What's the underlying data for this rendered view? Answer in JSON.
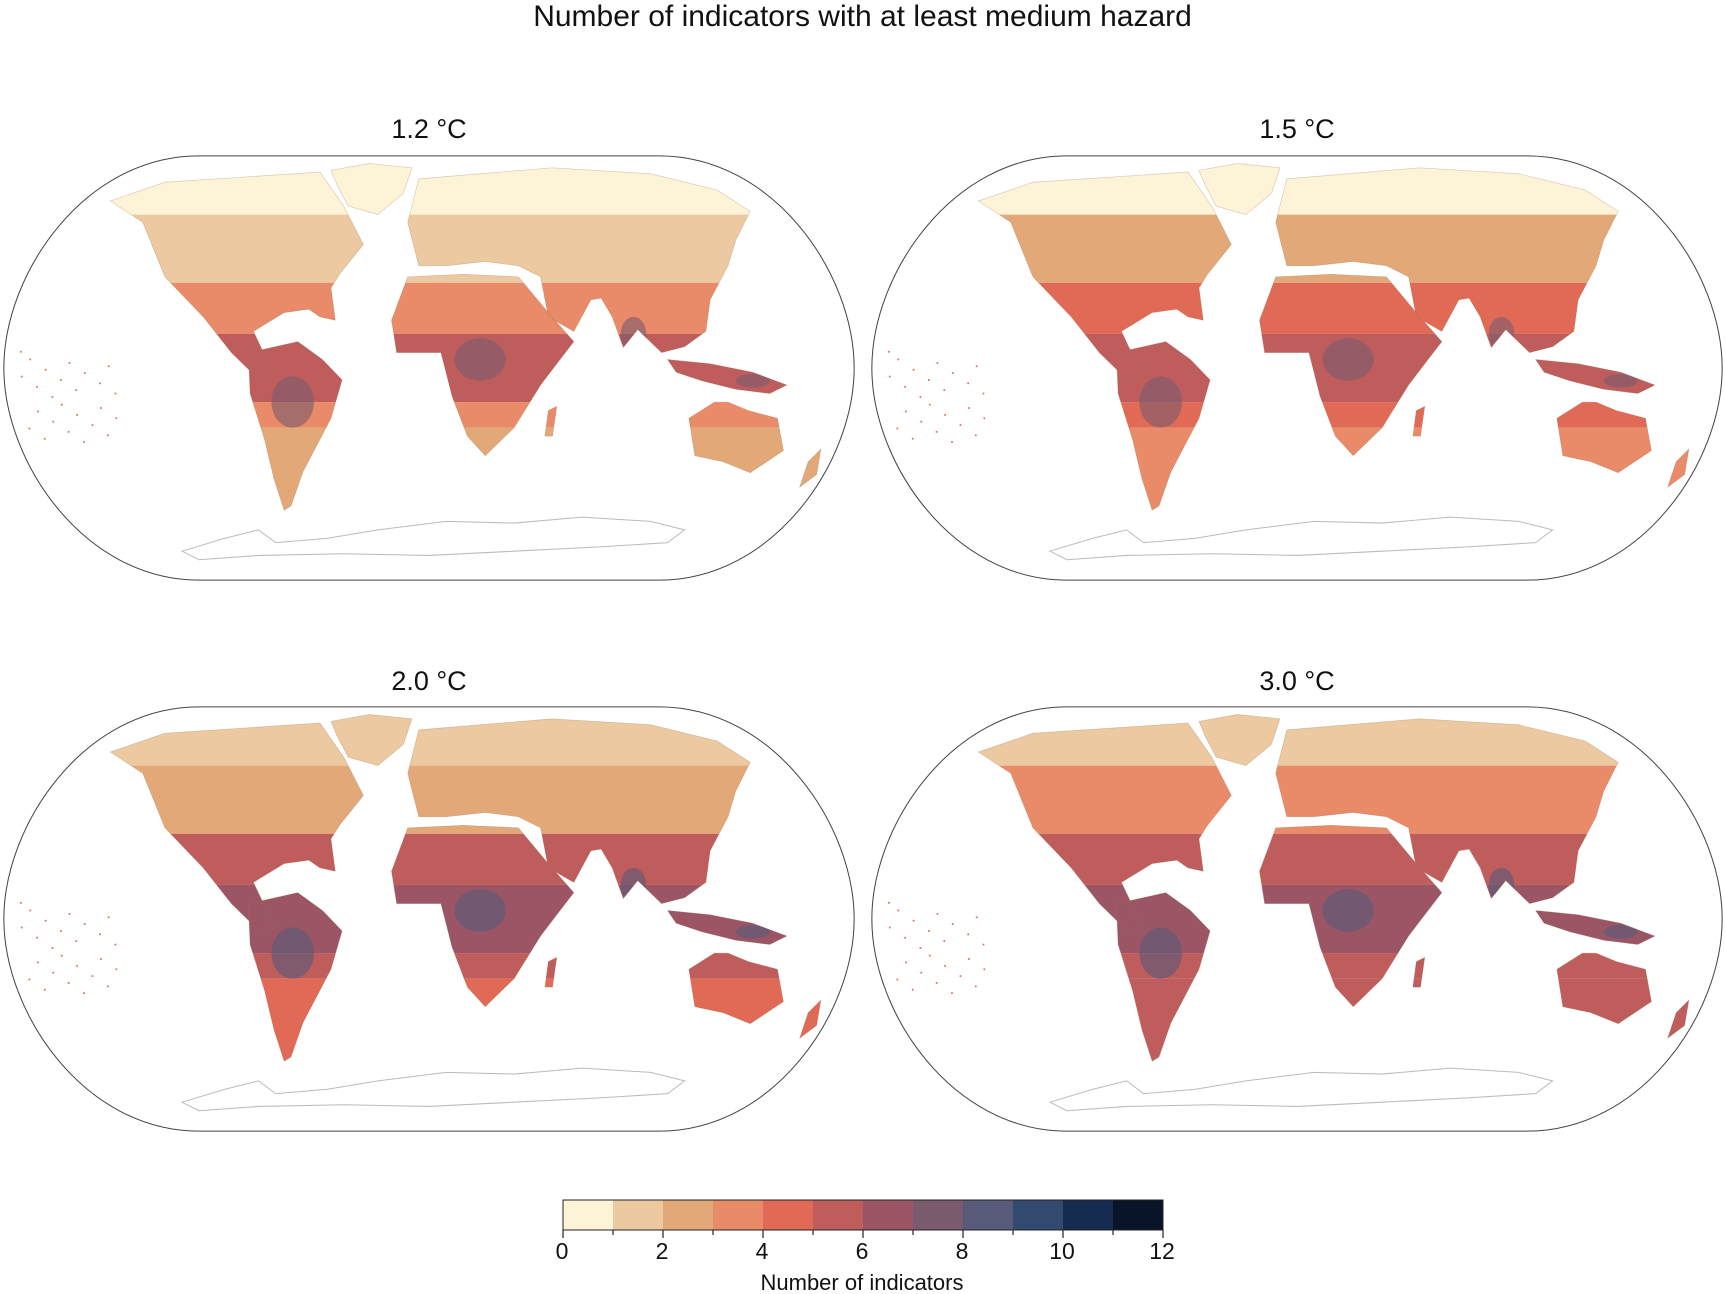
{
  "chart_data": {
    "type": "heatmap",
    "title": "Number of indicators with at least medium hazard",
    "colorbar": {
      "label": "Number of indicators",
      "range": [
        0,
        12
      ],
      "tick_labels": [
        "0",
        "2",
        "4",
        "6",
        "8",
        "10",
        "12"
      ],
      "colors": [
        "#fdf3d7",
        "#ecc9a0",
        "#e3a878",
        "#e98a68",
        "#e06a55",
        "#bf5c5c",
        "#9b5565",
        "#7a5b6e",
        "#575a78",
        "#324a70",
        "#142c4f",
        "#0a1428"
      ]
    },
    "panels": [
      {
        "title": "1.2 °C",
        "band_levels": {
          "polar": 0,
          "north_mid": 1,
          "subtropics": 3,
          "tropics": 5,
          "south_mid": 2
        }
      },
      {
        "title": "1.5 °C",
        "band_levels": {
          "polar": 0,
          "north_mid": 2,
          "subtropics": 4,
          "tropics": 5,
          "south_mid": 3
        }
      },
      {
        "title": "2.0 °C",
        "band_levels": {
          "polar": 1,
          "north_mid": 2,
          "subtropics": 5,
          "tropics": 6,
          "south_mid": 4
        }
      },
      {
        "title": "3.0 °C",
        "band_levels": {
          "polar": 1,
          "north_mid": 3,
          "subtropics": 5,
          "tropics": 6,
          "south_mid": 5
        }
      }
    ]
  }
}
